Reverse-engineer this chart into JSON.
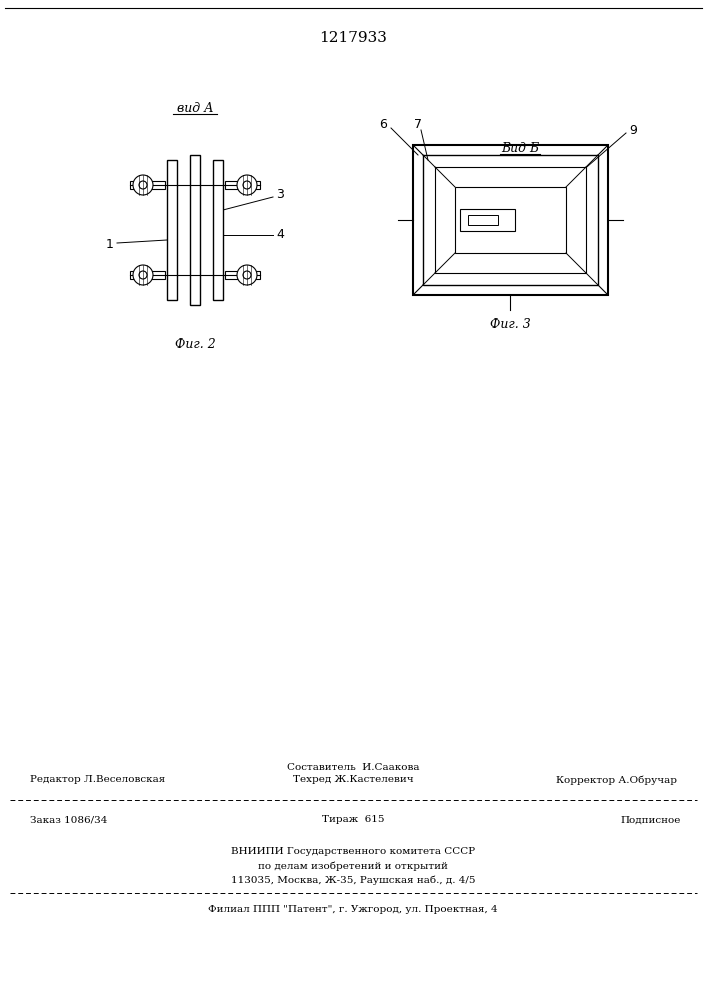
{
  "title_number": "1217933",
  "bg_color": "#ffffff",
  "fig_width": 7.07,
  "fig_height": 10.0,
  "footer": {
    "line1_left": "Редактор Л.Веселовская",
    "line1_center_top": "Составитель  И.Саакова",
    "line1_center_bot": "Техред Ж.Кастелевич",
    "line1_right": "Корректор А.Обручар",
    "line2_left": "Заказ 1086/34",
    "line2_center": "Тираж  615",
    "line2_right": "Подписное",
    "line3": "ВНИИПИ Государственного комитета СССР",
    "line4": "по делам изобретений и открытий",
    "line5": "113035, Москва, Ж-35, Раушская наб., д. 4/5",
    "line6": "Филиал ППП \"Патент\", г. Ужгород, ул. Проектная, 4"
  },
  "fig2_label": "Фиг. 2",
  "fig3_label": "Фиг. 3",
  "vid_a_label": "вид А",
  "vid_b_label": "Вид Б"
}
